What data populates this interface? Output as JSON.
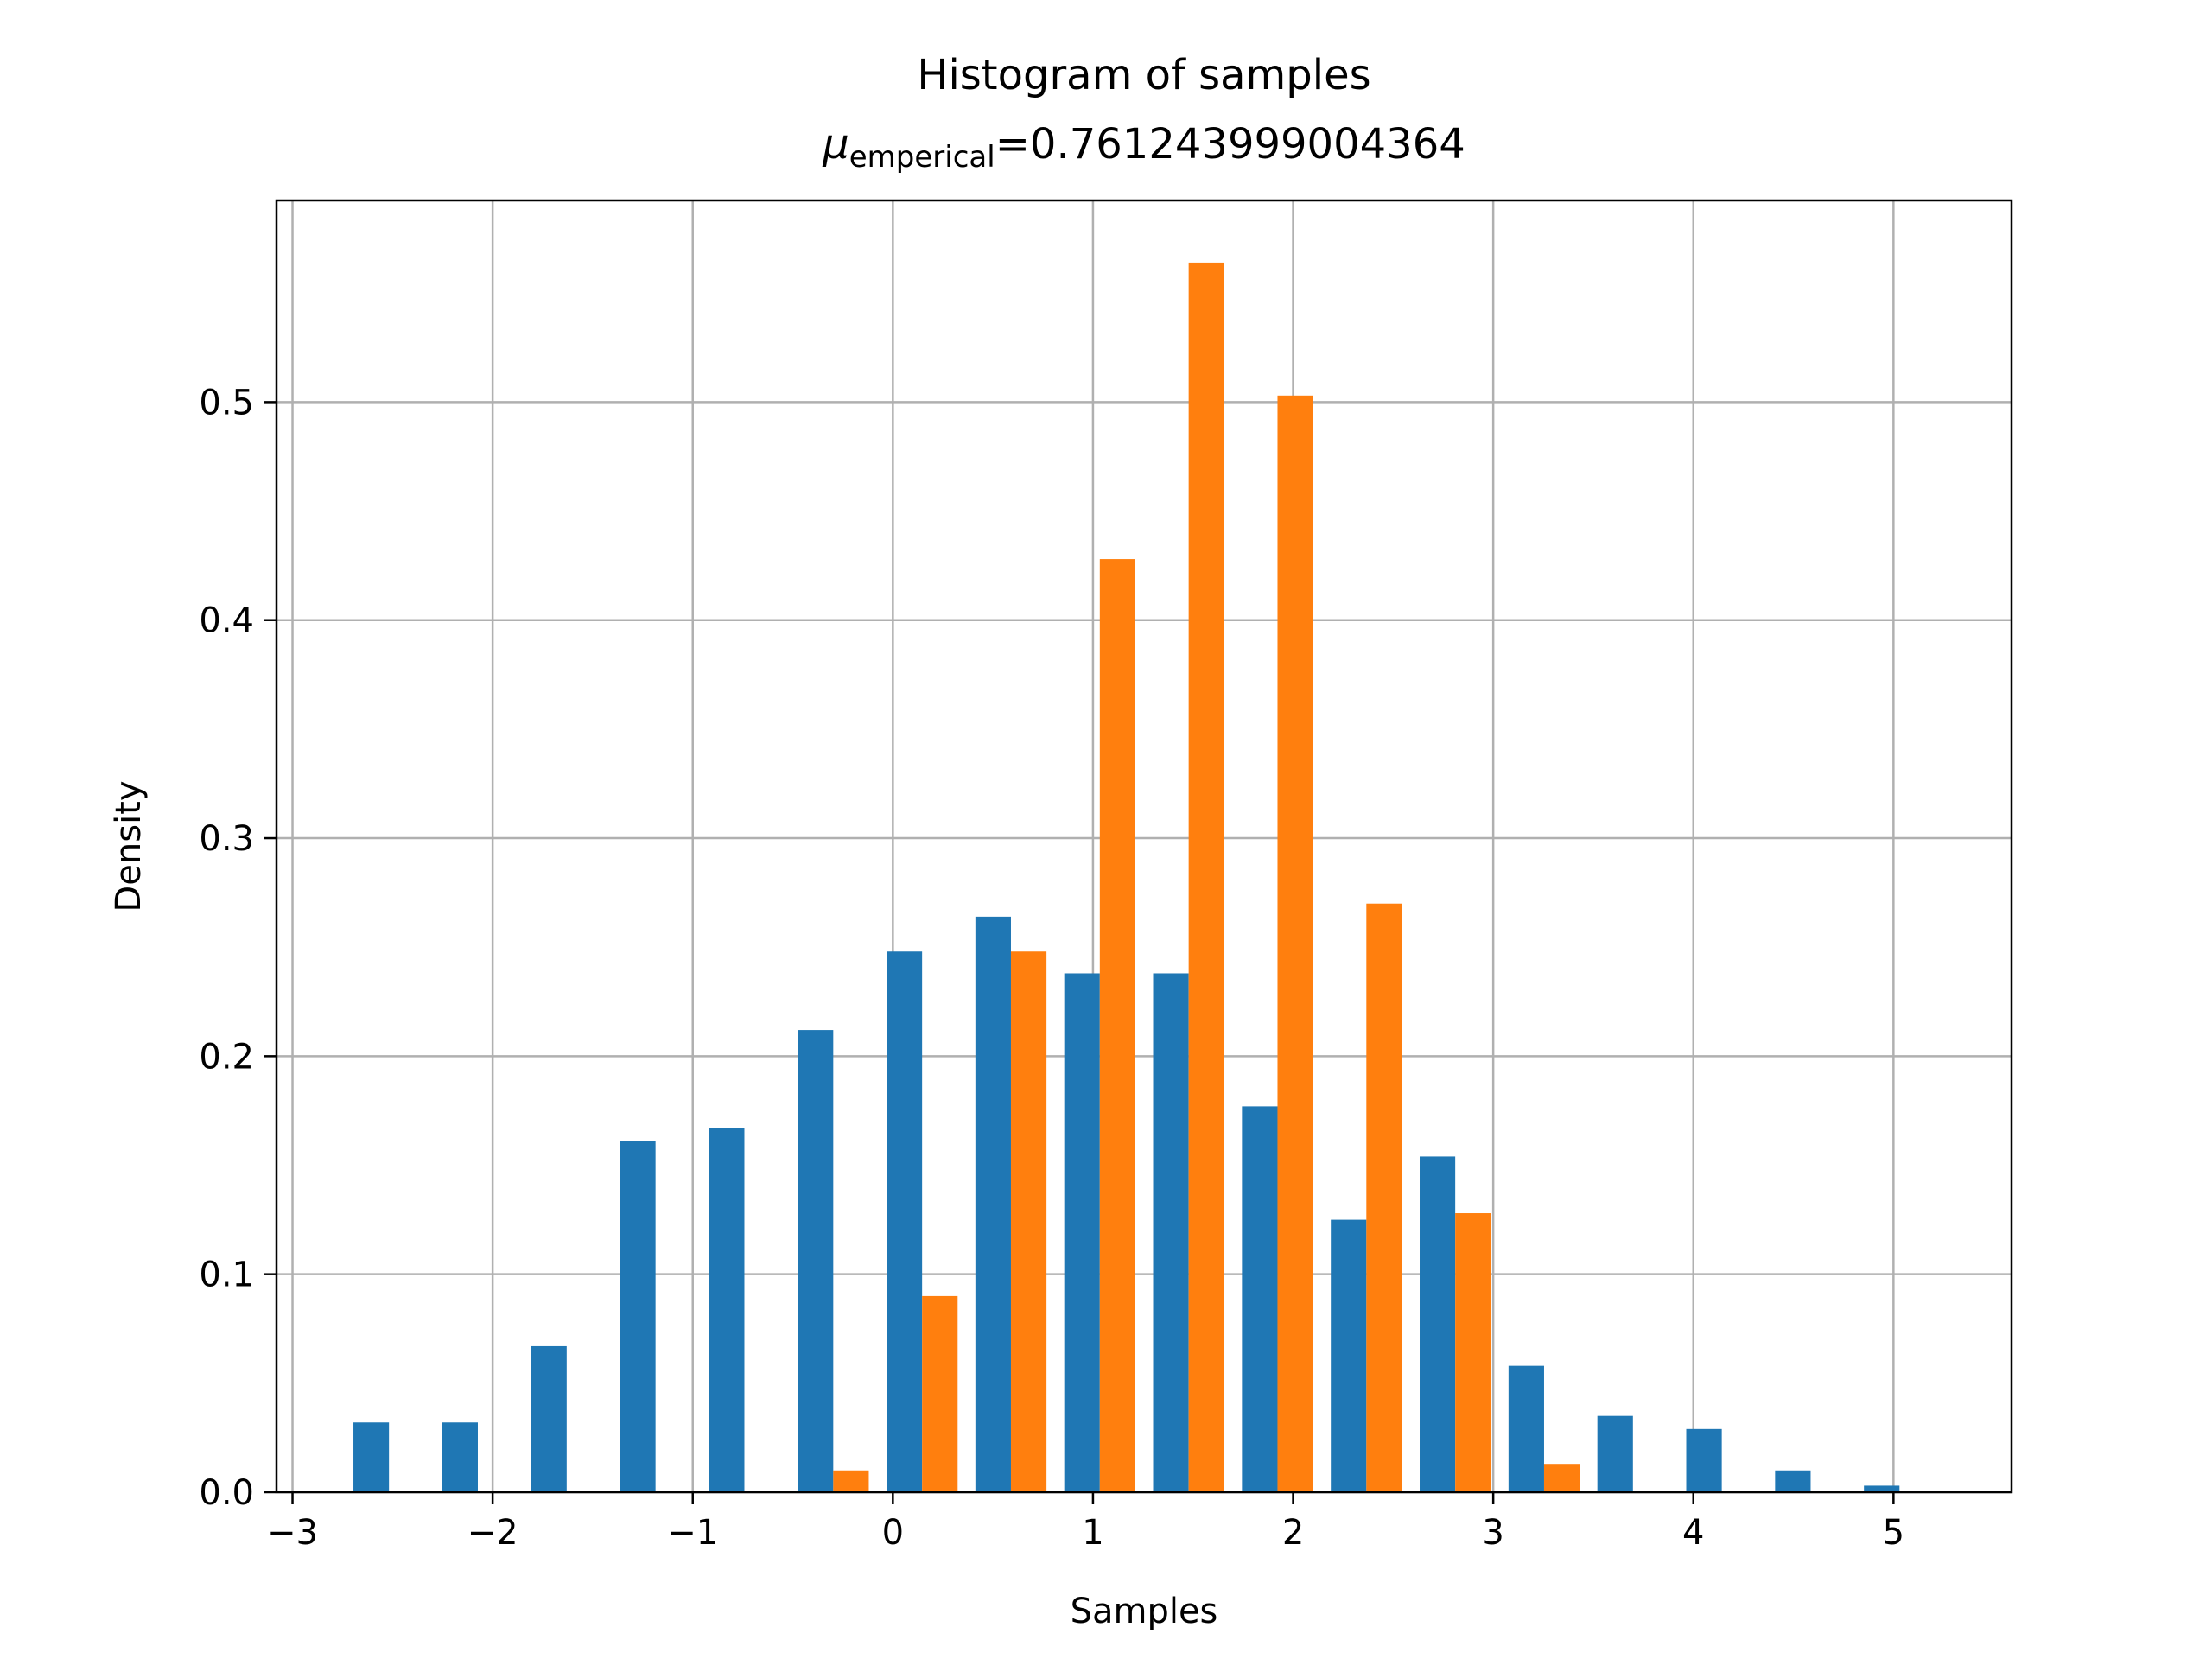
{
  "chart_data": {
    "type": "bar",
    "title": "Histogram of samples",
    "subtitle_symbol": "μ",
    "subtitle_subscript": "emperical",
    "subtitle_value": "=0.761243999004364",
    "xlabel": "Samples",
    "ylabel": "Density",
    "xlim": [
      -3.08,
      5.59
    ],
    "ylim": [
      0,
      0.5925
    ],
    "grid": true,
    "xticks": [
      -3,
      -2,
      -1,
      0,
      1,
      2,
      3,
      4,
      5
    ],
    "xtick_labels": [
      "−3",
      "−2",
      "−1",
      "0",
      "1",
      "2",
      "3",
      "4",
      "5"
    ],
    "yticks": [
      0,
      0.1,
      0.2,
      0.3,
      0.4,
      0.5
    ],
    "ytick_labels": [
      "0.0",
      "0.1",
      "0.2",
      "0.3",
      "0.4",
      "0.5"
    ],
    "bin_edges": [
      -2.74,
      -2.296,
      -1.852,
      -1.408,
      -0.964,
      -0.52,
      -0.076,
      0.368,
      0.812,
      1.256,
      1.7,
      2.144,
      2.588,
      3.032,
      3.476,
      3.92,
      4.364,
      4.808,
      5.252
    ],
    "series": [
      {
        "color": "#1f77b4",
        "values": [
          0.032,
          0.032,
          0.067,
          0.161,
          0.167,
          0.212,
          0.248,
          0.264,
          0.238,
          0.238,
          0.177,
          0.125,
          0.154,
          0.058,
          0.035,
          0.029,
          0.01,
          0.003
        ]
      },
      {
        "color": "#ff7f0e",
        "values": [
          0,
          0,
          0,
          0,
          0,
          0.01,
          0.09,
          0.248,
          0.428,
          0.564,
          0.503,
          0.27,
          0.128,
          0.013,
          0,
          0,
          0,
          0
        ]
      }
    ]
  }
}
